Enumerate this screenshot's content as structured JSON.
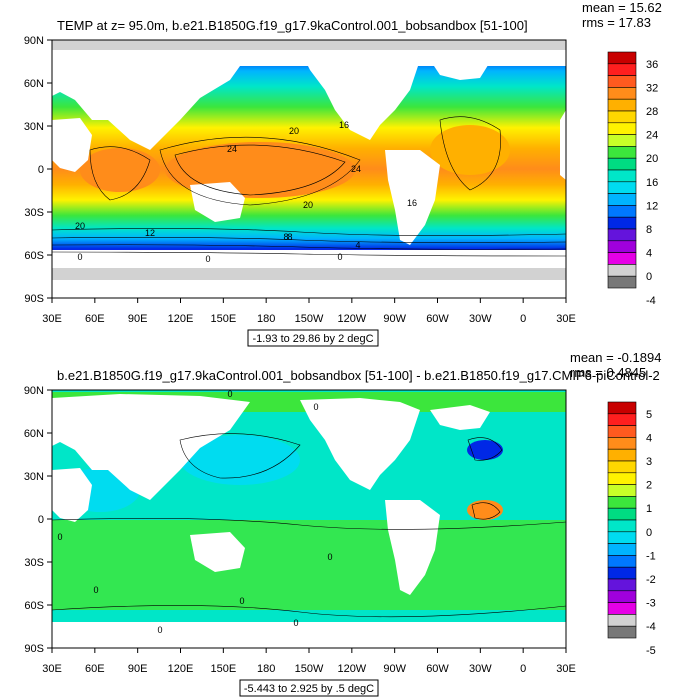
{
  "panels": [
    {
      "id": "top",
      "title": "TEMP at z=  95.0m, b.e21.B1850G.f19_g17.9kaControl.001_bobsandbox [51-100]",
      "stats": {
        "mean": "mean = 15.62",
        "rms": "rms = 17.83"
      },
      "lat_ticks": [
        "90N",
        "60N",
        "30N",
        "0",
        "30S",
        "60S",
        "90S"
      ],
      "lon_ticks": [
        "30E",
        "60E",
        "90E",
        "120E",
        "150E",
        "180",
        "150W",
        "120W",
        "90W",
        "60W",
        "30W",
        "0",
        "30E"
      ],
      "range_note": "-1.93 to 29.86 by 2 degC",
      "colorbar": {
        "labels": [
          "36",
          "32",
          "28",
          "24",
          "20",
          "16",
          "12",
          "8",
          "4",
          "0",
          "-4"
        ],
        "colors": [
          "#c80000",
          "#ff1f1f",
          "#ff5a1f",
          "#ff8c1a",
          "#ffb000",
          "#ffd700",
          "#fff200",
          "#c8ff28",
          "#3ce63c",
          "#00dc82",
          "#00e6c8",
          "#00dcf0",
          "#00b4ff",
          "#0078ff",
          "#0028e6",
          "#6414dc",
          "#a000dc",
          "#e600e6",
          "#d2d2d2",
          "#787878"
        ]
      },
      "contour_labels": [
        "20",
        "16",
        "24",
        "24",
        "20",
        "16",
        "20",
        "12",
        "8",
        "8",
        "4",
        "0",
        "0",
        "0"
      ]
    },
    {
      "id": "bottom",
      "title": "b.e21.B1850G.f19_g17.9kaControl.001_bobsandbox [51-100] - b.e21.B1850.f19_g17.CMIP6-piControl-2",
      "stats": {
        "mean": "mean = -0.1894",
        "rms": "rms = 0.4845"
      },
      "lat_ticks": [
        "90N",
        "60N",
        "30N",
        "0",
        "30S",
        "60S",
        "90S"
      ],
      "lon_ticks": [
        "30E",
        "60E",
        "90E",
        "120E",
        "150E",
        "180",
        "150W",
        "120W",
        "90W",
        "60W",
        "30W",
        "0",
        "30E"
      ],
      "range_note": "-5.443 to 2.925 by .5 degC",
      "colorbar": {
        "labels": [
          "5",
          "4",
          "3",
          "2",
          "1",
          "0",
          "-1",
          "-2",
          "-3",
          "-4",
          "-5"
        ],
        "colors": [
          "#c80000",
          "#ff1f1f",
          "#ff5a1f",
          "#ff8c1a",
          "#ffb000",
          "#ffd700",
          "#fff200",
          "#c8ff28",
          "#3ce63c",
          "#00dc82",
          "#00e6c8",
          "#00dcf0",
          "#00b4ff",
          "#0078ff",
          "#0028e6",
          "#6414dc",
          "#a000dc",
          "#e600e6",
          "#d2d2d2",
          "#787878"
        ]
      },
      "contour_labels": [
        "0",
        "0",
        "0",
        "0",
        "0",
        "0",
        "0",
        "0"
      ]
    }
  ]
}
